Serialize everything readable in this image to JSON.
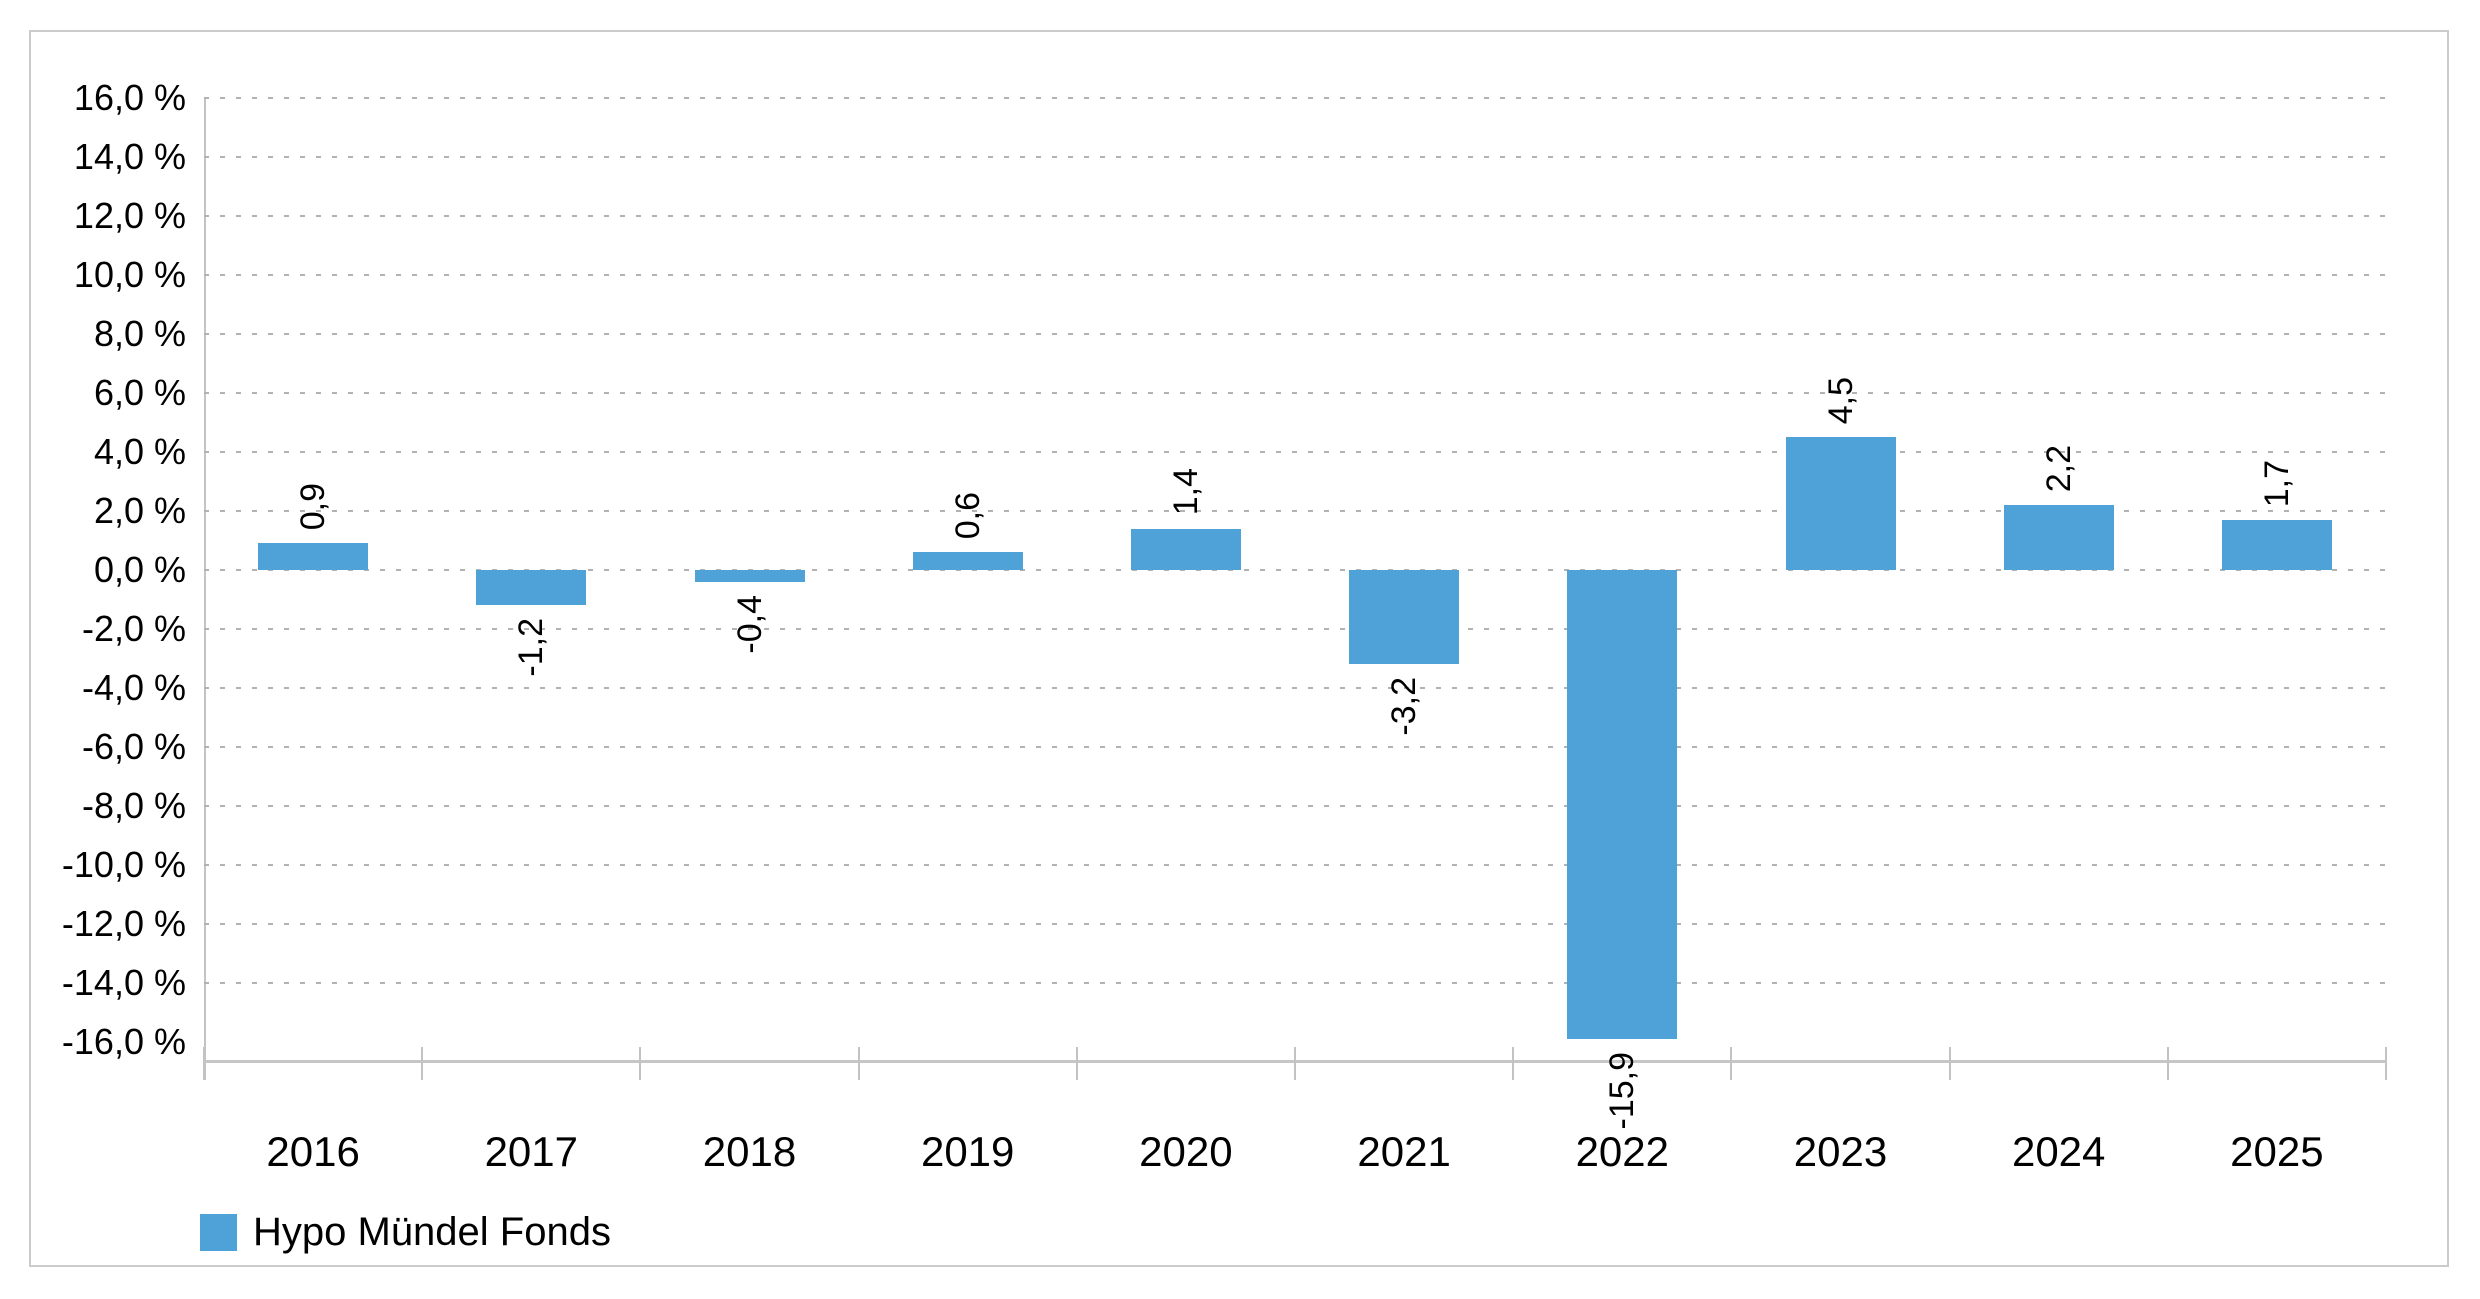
{
  "chart_data": {
    "type": "bar",
    "title": "",
    "categories": [
      "2016",
      "2017",
      "2018",
      "2019",
      "2020",
      "2021",
      "2022",
      "2023",
      "2024",
      "2025"
    ],
    "series": [
      {
        "name": "Hypo Mündel Fonds",
        "color": "#4fa2d8",
        "values": [
          0.9,
          -1.2,
          -0.4,
          0.6,
          1.4,
          -3.2,
          -15.9,
          4.5,
          2.2,
          1.7
        ],
        "value_labels": [
          "0,9",
          "-1,2",
          "-0,4",
          "0,6",
          "1,4",
          "-3,2",
          "-15,9",
          "4,5",
          "2,2",
          "1,7"
        ]
      }
    ],
    "xlabel": "",
    "ylabel": "",
    "ylim": [
      -16,
      16
    ],
    "ytick_step": 2,
    "ytick_labels": [
      "16,0 %",
      "14,0 %",
      "12,0 %",
      "10,0 %",
      "8,0 %",
      "6,0 %",
      "4,0 %",
      "2,0 %",
      "0,0 %",
      "-2,0 %",
      "-4,0 %",
      "-6,0 %",
      "-8,0 %",
      "-10,0 %",
      "-12,0 %",
      "-14,0 %",
      "-16,0 %"
    ],
    "grid": "horizontal-dashed",
    "value_label_rotation": -90,
    "legend_position": "bottom-left"
  },
  "legend": {
    "swatch_color": "#4fa2d8",
    "label": "Hypo Mündel Fonds"
  },
  "colors": {
    "bar": "#4fa2d8",
    "gridline": "#b2b2b2",
    "axis": "#c3c3c3",
    "frame_border": "#cbcbcb",
    "text": "#000000",
    "background": "#ffffff"
  }
}
